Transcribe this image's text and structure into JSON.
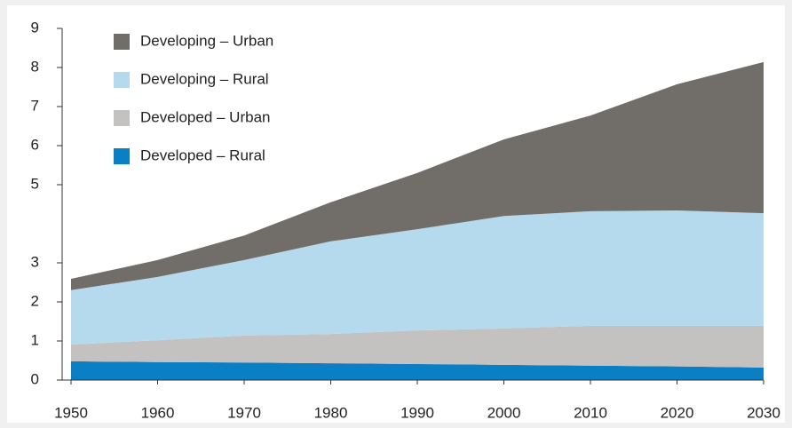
{
  "chart_data": {
    "type": "area",
    "stacked": true,
    "x": [
      1950,
      1960,
      1970,
      1980,
      1990,
      2000,
      2010,
      2020,
      2030
    ],
    "series": [
      {
        "name": "Developed – Rural",
        "color": "#0a7fc4",
        "values": [
          0.48,
          0.46,
          0.45,
          0.43,
          0.41,
          0.39,
          0.37,
          0.35,
          0.32
        ]
      },
      {
        "name": "Developed – Urban",
        "color": "#c4c2c1",
        "values": [
          0.43,
          0.56,
          0.69,
          0.75,
          0.86,
          0.93,
          1.02,
          1.04,
          1.07
        ]
      },
      {
        "name": "Developing – Rural",
        "color": "#b5daee",
        "values": [
          1.39,
          1.62,
          1.93,
          2.37,
          2.59,
          2.88,
          2.93,
          2.95,
          2.88
        ]
      },
      {
        "name": "Developing – Urban",
        "color": "#716d69",
        "values": [
          0.29,
          0.43,
          0.63,
          1.0,
          1.44,
          1.96,
          2.45,
          3.23,
          3.87
        ]
      }
    ],
    "xlim": [
      1950,
      2030
    ],
    "xticks": [
      1950,
      1960,
      1970,
      1980,
      1990,
      2000,
      2010,
      2020,
      2030
    ],
    "ylim": [
      0,
      9
    ],
    "yticks": [
      0,
      1,
      2,
      3,
      5,
      6,
      7,
      8,
      9
    ]
  }
}
